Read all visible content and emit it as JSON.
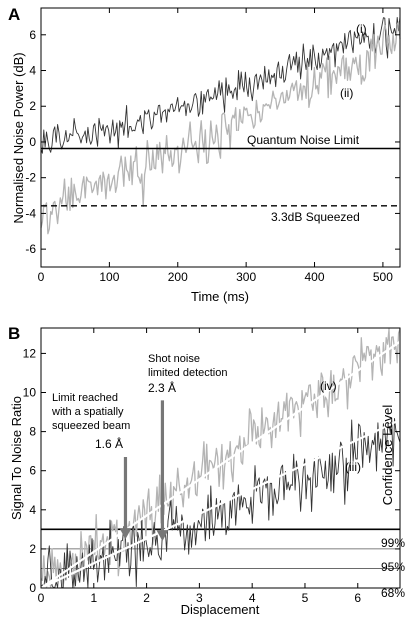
{
  "chart_data": [
    {
      "type": "line",
      "panel_label": "A",
      "xlabel": "Time (ms)",
      "ylabel": "Normalised Noise Power (dB)",
      "xlim": [
        0,
        525
      ],
      "ylim": [
        -7,
        7.5
      ],
      "x_ticks": [
        0,
        100,
        200,
        300,
        400,
        500
      ],
      "y_ticks": [
        -6,
        -4,
        -2,
        0,
        2,
        4,
        6
      ],
      "grid": false,
      "series": [
        {
          "name": "(i)",
          "color": "#333333",
          "noise": 0.55,
          "x": [
            0,
            50,
            100,
            150,
            200,
            250,
            300,
            350,
            400,
            450,
            500,
            525
          ],
          "values": [
            0.4,
            0.3,
            0.6,
            1.0,
            1.8,
            2.5,
            3.2,
            3.9,
            4.7,
            5.4,
            6.2,
            6.6
          ]
        },
        {
          "name": "(ii)",
          "color": "#b4b4b4",
          "noise": 0.8,
          "x": [
            0,
            50,
            100,
            150,
            200,
            250,
            300,
            350,
            400,
            450,
            500,
            525
          ],
          "values": [
            -4.2,
            -3.0,
            -2.0,
            -1.2,
            -0.4,
            0.3,
            1.2,
            2.4,
            3.4,
            4.3,
            5.3,
            5.7
          ]
        }
      ],
      "reference_lines": [
        {
          "y": 0,
          "style": "solid",
          "label": "Quantum Noise Limit"
        },
        {
          "y": -3.3,
          "style": "dashed",
          "label": "3.3dB Squeezed"
        }
      ],
      "labels": [
        {
          "text": "(i)",
          "x": 440,
          "y": 6.5
        },
        {
          "text": "(ii)",
          "x": 485,
          "y": 3.2
        }
      ]
    },
    {
      "type": "line",
      "panel_label": "B",
      "xlabel": "Displacement",
      "ylabel": "Signal To Noise Ratio",
      "right_ylabel": "Confidence Level",
      "xlim": [
        0,
        6.8
      ],
      "ylim": [
        0,
        13.3
      ],
      "x_ticks": [
        0,
        1,
        2,
        3,
        4,
        5,
        6
      ],
      "y_ticks": [
        0,
        2,
        4,
        6,
        8,
        10,
        12
      ],
      "grid": false,
      "series": [
        {
          "name": "(iv)",
          "color": "#b4b4b4",
          "noise": 0.85,
          "x": [
            0,
            0.5,
            1,
            1.5,
            2,
            2.5,
            3,
            3.5,
            4,
            4.5,
            5,
            5.5,
            6,
            6.5,
            6.8
          ],
          "values": [
            0.3,
            1.0,
            2.0,
            2.9,
            3.8,
            4.8,
            5.7,
            6.6,
            7.6,
            8.5,
            9.5,
            10.4,
            11.3,
            12.2,
            12.7
          ]
        },
        {
          "name": "(iii)",
          "color": "#333333",
          "noise": 0.95,
          "x": [
            0,
            0.5,
            1,
            1.5,
            2,
            2.5,
            3,
            3.5,
            4,
            4.5,
            5,
            5.5,
            6,
            6.5,
            6.8
          ],
          "values": [
            0.2,
            0.8,
            1.3,
            1.8,
            2.4,
            2.9,
            3.5,
            4.0,
            4.6,
            5.1,
            5.7,
            6.3,
            6.8,
            7.6,
            8.3
          ]
        }
      ],
      "fit_lines": [
        {
          "from": [
            0,
            0
          ],
          "to": [
            6.8,
            12.6
          ],
          "color": "#ffffff"
        },
        {
          "from": [
            0,
            0
          ],
          "to": [
            6.8,
            8.6
          ],
          "color": "#ffffff"
        }
      ],
      "reference_lines": [
        {
          "y": 3.0,
          "label": "99%"
        },
        {
          "y": 2.0,
          "label": "95%"
        },
        {
          "y": 1.0,
          "label": "68%"
        }
      ],
      "arrows": [
        {
          "x": 1.6,
          "y_from": 6.7,
          "y_to": 2.5
        },
        {
          "x": 2.3,
          "y_from": 9.6,
          "y_to": 2.4
        }
      ],
      "annotations": [
        {
          "lines": [
            "Limit reached",
            "with a spatially",
            "squeezed beam"
          ],
          "value": "1.6 Å"
        },
        {
          "lines": [
            "Shot noise",
            "limited detection"
          ],
          "value": "2.3 Å"
        }
      ],
      "labels": [
        {
          "text": "(iv)",
          "x": 5.6,
          "y": 12.2
        },
        {
          "text": "(iii)",
          "x": 5.9,
          "y": 6.3
        }
      ]
    }
  ]
}
